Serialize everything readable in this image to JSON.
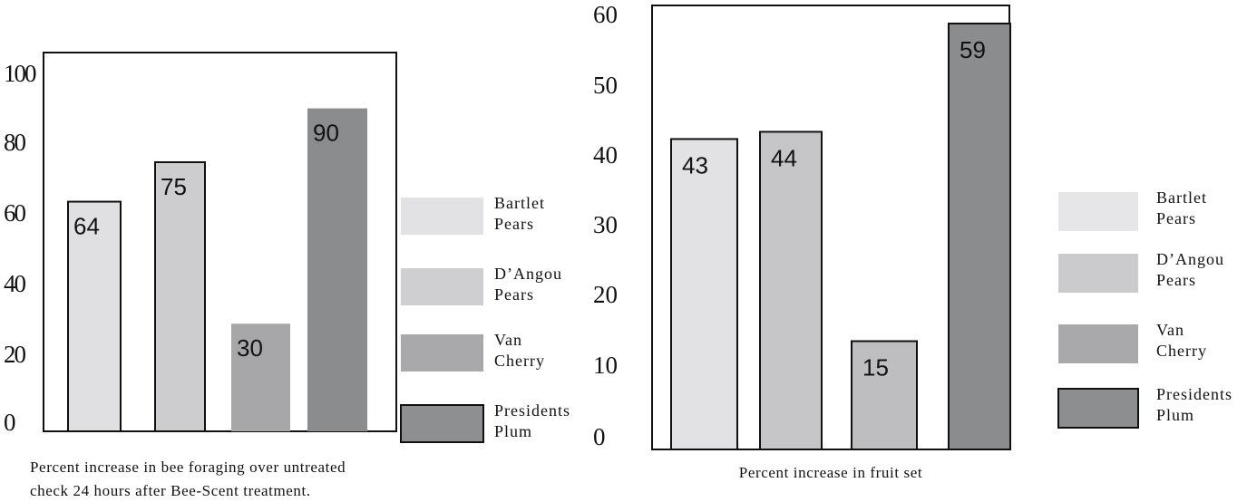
{
  "chart_data": [
    {
      "type": "bar",
      "categories": [
        "Bartlet Pears",
        "D'Angou Pears",
        "Van Cherry",
        "Presidents Plum"
      ],
      "values": [
        64,
        75,
        30,
        90
      ],
      "value_labels": [
        "64",
        "75",
        "30",
        "90"
      ],
      "ylim": [
        0,
        100
      ],
      "y_ticks": [
        "0",
        "20",
        "40",
        "60",
        "80",
        "100"
      ],
      "caption_lines": [
        "Percent increase in bee foraging over untreated",
        "check 24 hours after Bee-Scent treatment."
      ],
      "legend": [
        {
          "lines": [
            "Bartlet",
            "Pears"
          ],
          "color": "#e2e2e4"
        },
        {
          "lines": [
            "D’Angou",
            "Pears"
          ],
          "color": "#cfcfd1"
        },
        {
          "lines": [
            "Van",
            "Cherry"
          ],
          "color": "#a9a9ab"
        },
        {
          "lines": [
            "Presidents",
            "Plum"
          ],
          "color": "#8e8f91"
        }
      ],
      "bar_colors": [
        "#e0e0e2",
        "#cdcdcf",
        "#a7a7a9",
        "#8b8c8e"
      ],
      "grid": false,
      "legend_position": "right"
    },
    {
      "type": "bar",
      "categories": [
        "Bartlet Pears",
        "D'Angou Pears",
        "Van Cherry",
        "Presidents Plum"
      ],
      "values": [
        43,
        44,
        15,
        59
      ],
      "value_labels": [
        "43",
        "44",
        "15",
        "59"
      ],
      "ylim": [
        0,
        60
      ],
      "y_ticks": [
        "0",
        "10",
        "20",
        "30",
        "40",
        "50",
        "60"
      ],
      "caption_lines": [
        "Percent increase in fruit set"
      ],
      "legend": [
        {
          "lines": [
            "Bartlet",
            "Pears"
          ],
          "color": "#e6e6e8"
        },
        {
          "lines": [
            "D’Angou",
            "Pears"
          ],
          "color": "#cbcbcd"
        },
        {
          "lines": [
            "Van",
            "Cherry"
          ],
          "color": "#a9a9ab"
        },
        {
          "lines": [
            "Presidents",
            "Plum"
          ],
          "color": "#8d8e90"
        }
      ],
      "bar_colors": [
        "#e2e2e4",
        "#c6c6c8",
        "#bebec0",
        "#8b8c8e"
      ],
      "grid": false,
      "legend_position": "right"
    }
  ]
}
